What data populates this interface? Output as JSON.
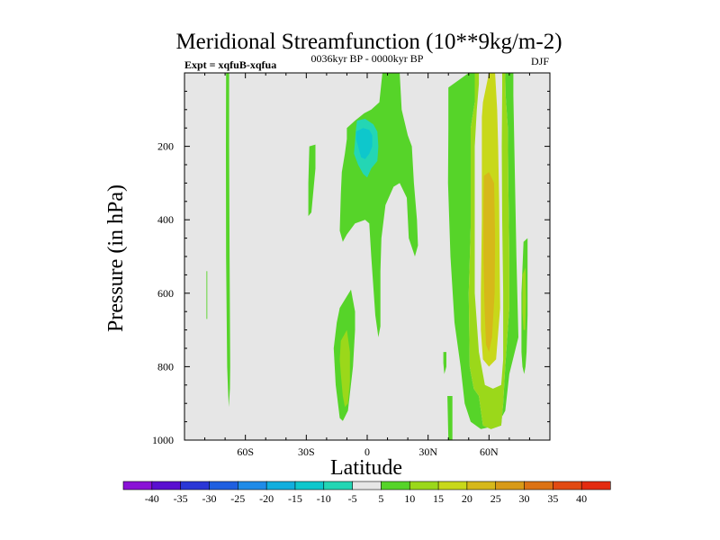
{
  "chart_data": {
    "type": "contour",
    "title": "Meridional Streamfunction (10**9kg/m-2)",
    "subtitle": "0036kyr BP - 0000kyr BP",
    "left_label": "Expt = xqfuB-xqfua",
    "right_label": "DJF",
    "xlabel": "Latitude",
    "ylabel": "Pressure (in hPa)",
    "xlim": [
      -90,
      90
    ],
    "ylim": [
      1000,
      0
    ],
    "x_ticks": [
      {
        "value": -60,
        "label": "60S"
      },
      {
        "value": -30,
        "label": "30S"
      },
      {
        "value": 0,
        "label": "0"
      },
      {
        "value": 30,
        "label": "30N"
      },
      {
        "value": 60,
        "label": "60N"
      }
    ],
    "y_ticks": [
      {
        "value": 200,
        "label": "200"
      },
      {
        "value": 400,
        "label": "400"
      },
      {
        "value": 600,
        "label": "600"
      },
      {
        "value": 800,
        "label": "800"
      },
      {
        "value": 1000,
        "label": "1000"
      }
    ],
    "colorbar": {
      "levels": [
        -40,
        -35,
        -30,
        -25,
        -20,
        -15,
        -10,
        -5,
        5,
        10,
        15,
        20,
        25,
        30,
        35,
        40
      ],
      "colors": [
        "#8a12d6",
        "#5a0fd0",
        "#2b37d6",
        "#1f5fe0",
        "#1f8be8",
        "#11aede",
        "#0ec7cc",
        "#24d6b4",
        "#e6e6e6",
        "#56d429",
        "#9bd81a",
        "#c8d81a",
        "#d6b81a",
        "#d89a17",
        "#dc7214",
        "#e24a12",
        "#e32b10"
      ]
    },
    "regions": [
      {
        "name": "c1",
        "level": 5,
        "points": [
          [
            -69.5,
            0
          ],
          [
            -68,
            0
          ],
          [
            -68,
            200
          ],
          [
            -67.8,
            500
          ],
          [
            -67.5,
            800
          ],
          [
            -67.6,
            860
          ],
          [
            -68.2,
            910
          ],
          [
            -68.6,
            860
          ],
          [
            -69,
            800
          ],
          [
            -69.5,
            500
          ],
          [
            -69.6,
            200
          ]
        ]
      },
      {
        "name": "c2",
        "level": 5,
        "points": [
          [
            -79.2,
            540
          ],
          [
            -78.8,
            540
          ],
          [
            -78.8,
            670
          ],
          [
            -79.2,
            670
          ]
        ]
      },
      {
        "name": "c3",
        "level": 5,
        "points": [
          [
            7.5,
            0
          ],
          [
            16,
            0
          ],
          [
            17,
            100
          ],
          [
            20,
            170
          ],
          [
            22,
            200
          ],
          [
            23,
            300
          ],
          [
            24.5,
            400
          ],
          [
            25,
            470
          ],
          [
            23.5,
            500
          ],
          [
            20.5,
            450
          ],
          [
            19.5,
            340
          ],
          [
            16,
            300
          ],
          [
            13,
            310
          ],
          [
            9,
            360
          ],
          [
            7,
            450
          ],
          [
            6.5,
            540
          ],
          [
            6.5,
            690
          ],
          [
            5.5,
            720
          ],
          [
            4,
            660
          ],
          [
            2,
            500
          ],
          [
            1,
            410
          ],
          [
            -1,
            400
          ],
          [
            -6,
            410
          ],
          [
            -10,
            440
          ],
          [
            -12,
            460
          ],
          [
            -13.5,
            430
          ],
          [
            -13,
            330
          ],
          [
            -12.5,
            270
          ],
          [
            -11,
            220
          ],
          [
            -10,
            180
          ],
          [
            -10,
            150
          ],
          [
            -6,
            130
          ],
          [
            -1.5,
            110
          ],
          [
            2,
            100
          ],
          [
            6,
            80
          ]
        ]
      },
      {
        "name": "c4",
        "level": -5,
        "points": [
          [
            -5,
            130
          ],
          [
            -1,
            125
          ],
          [
            3,
            140
          ],
          [
            5,
            160
          ],
          [
            5.5,
            200
          ],
          [
            5,
            240
          ],
          [
            2,
            260
          ],
          [
            0,
            285
          ],
          [
            -2,
            275
          ],
          [
            -4.5,
            250
          ],
          [
            -6.5,
            220
          ],
          [
            -6,
            185
          ],
          [
            -5.5,
            150
          ]
        ]
      },
      {
        "name": "c5",
        "level": -10,
        "points": [
          [
            -5.5,
            160
          ],
          [
            -2,
            150
          ],
          [
            1,
            155
          ],
          [
            2.5,
            170
          ],
          [
            2.5,
            200
          ],
          [
            1,
            220
          ],
          [
            -1,
            235
          ],
          [
            -3,
            230
          ],
          [
            -4.5,
            200
          ],
          [
            -5.5,
            180
          ]
        ]
      },
      {
        "name": "c6",
        "level": 5,
        "points": [
          [
            -28.5,
            200
          ],
          [
            -25.5,
            195
          ],
          [
            -25.5,
            260
          ],
          [
            -27.5,
            380
          ],
          [
            -29,
            390
          ],
          [
            -29,
            300
          ]
        ]
      },
      {
        "name": "c7",
        "level": 5,
        "points": [
          [
            37.5,
            760
          ],
          [
            39,
            760
          ],
          [
            39,
            800
          ],
          [
            38,
            820
          ],
          [
            37.5,
            790
          ]
        ]
      },
      {
        "name": "c8",
        "level": 5,
        "points": [
          [
            39.5,
            880
          ],
          [
            42,
            880
          ],
          [
            42,
            1000
          ],
          [
            40,
            1000
          ]
        ]
      },
      {
        "name": "c9",
        "level": 5,
        "points": [
          [
            -13.5,
            640
          ],
          [
            -8,
            590
          ],
          [
            -6,
            650
          ],
          [
            -6,
            700
          ],
          [
            -7,
            800
          ],
          [
            -9.5,
            920
          ],
          [
            -12,
            948
          ],
          [
            -13.5,
            940
          ],
          [
            -15.5,
            850
          ],
          [
            -16.5,
            750
          ],
          [
            -15,
            680
          ]
        ]
      },
      {
        "name": "c10",
        "level": 10,
        "points": [
          [
            -13,
            730
          ],
          [
            -10,
            700
          ],
          [
            -8.5,
            760
          ],
          [
            -8.5,
            840
          ],
          [
            -9.5,
            900
          ],
          [
            -11,
            910
          ],
          [
            -12,
            880
          ],
          [
            -13,
            820
          ],
          [
            -13.5,
            780
          ]
        ]
      },
      {
        "name": "c11",
        "level": 5,
        "points": [
          [
            40,
            40
          ],
          [
            50,
            0
          ],
          [
            53,
            0
          ],
          [
            53,
            80
          ],
          [
            51,
            150
          ],
          [
            51,
            250
          ],
          [
            51,
            300
          ],
          [
            51,
            420
          ],
          [
            50,
            600
          ],
          [
            50.5,
            800
          ],
          [
            52.5,
            860
          ],
          [
            55,
            880
          ],
          [
            57,
            960
          ],
          [
            61,
            970
          ],
          [
            66,
            960
          ],
          [
            67,
            900
          ],
          [
            68,
            800
          ],
          [
            70,
            640
          ],
          [
            70,
            500
          ],
          [
            69.8,
            400
          ],
          [
            69.5,
            300
          ],
          [
            69.3,
            150
          ],
          [
            68.2,
            60
          ],
          [
            68,
            0
          ],
          [
            72,
            0
          ],
          [
            72,
            60
          ],
          [
            73.5,
            500
          ],
          [
            74.5,
            720
          ],
          [
            70,
            820
          ],
          [
            68,
            920
          ],
          [
            64,
            960
          ],
          [
            56,
            970
          ],
          [
            51,
            950
          ],
          [
            48,
            900
          ],
          [
            46,
            800
          ],
          [
            43,
            680
          ],
          [
            41,
            500
          ],
          [
            39.8,
            300
          ],
          [
            40,
            150
          ]
        ]
      },
      {
        "name": "c12",
        "level": 10,
        "points": [
          [
            53,
            0
          ],
          [
            55,
            0
          ],
          [
            55,
            30
          ],
          [
            54,
            100
          ],
          [
            53,
            200
          ],
          [
            53,
            400
          ],
          [
            53,
            600
          ],
          [
            55,
            760
          ],
          [
            58,
            850
          ],
          [
            62,
            860
          ],
          [
            66,
            850
          ],
          [
            67,
            780
          ],
          [
            67,
            600
          ],
          [
            66.5,
            400
          ],
          [
            66.3,
            200
          ],
          [
            66.5,
            40
          ],
          [
            66.5,
            0
          ],
          [
            68,
            0
          ],
          [
            68.2,
            60
          ],
          [
            69.3,
            150
          ],
          [
            69.5,
            300
          ],
          [
            69.8,
            400
          ],
          [
            70,
            500
          ],
          [
            70,
            640
          ],
          [
            68,
            800
          ],
          [
            67,
            900
          ],
          [
            66,
            960
          ],
          [
            61,
            970
          ],
          [
            57,
            960
          ],
          [
            55,
            880
          ],
          [
            52.5,
            860
          ],
          [
            50.5,
            800
          ],
          [
            50,
            600
          ],
          [
            51,
            420
          ],
          [
            51,
            300
          ],
          [
            51,
            250
          ],
          [
            51,
            150
          ],
          [
            53,
            80
          ]
        ]
      },
      {
        "name": "c13",
        "level": 15,
        "points": [
          [
            57,
            80
          ],
          [
            60,
            0
          ],
          [
            63,
            0
          ],
          [
            64,
            100
          ],
          [
            64.5,
            200
          ],
          [
            65,
            350
          ],
          [
            65.2,
            500
          ],
          [
            65.5,
            640
          ],
          [
            63.5,
            780
          ],
          [
            60,
            800
          ],
          [
            57,
            780
          ],
          [
            56,
            700
          ],
          [
            56,
            600
          ],
          [
            56.5,
            400
          ],
          [
            56.5,
            250
          ],
          [
            56.5,
            120
          ]
        ]
      },
      {
        "name": "c14",
        "level": 20,
        "points": [
          [
            57.5,
            280
          ],
          [
            60,
            270
          ],
          [
            62.5,
            300
          ],
          [
            63,
            450
          ],
          [
            62.8,
            600
          ],
          [
            61.5,
            720
          ],
          [
            60,
            760
          ],
          [
            58.5,
            740
          ],
          [
            57.8,
            640
          ],
          [
            57.3,
            500
          ],
          [
            57.3,
            380
          ]
        ]
      },
      {
        "name": "c15",
        "level": 5,
        "points": [
          [
            77,
            460
          ],
          [
            79,
            450
          ],
          [
            79,
            660
          ],
          [
            78.5,
            760
          ],
          [
            78,
            800
          ],
          [
            77.3,
            820
          ],
          [
            76.5,
            800
          ],
          [
            76,
            760
          ],
          [
            76,
            600
          ]
        ]
      },
      {
        "name": "c16",
        "level": 10,
        "points": [
          [
            76.5,
            550
          ],
          [
            78,
            530
          ],
          [
            78.2,
            620
          ],
          [
            77.8,
            700
          ],
          [
            77,
            700
          ],
          [
            76.5,
            650
          ]
        ]
      }
    ]
  }
}
